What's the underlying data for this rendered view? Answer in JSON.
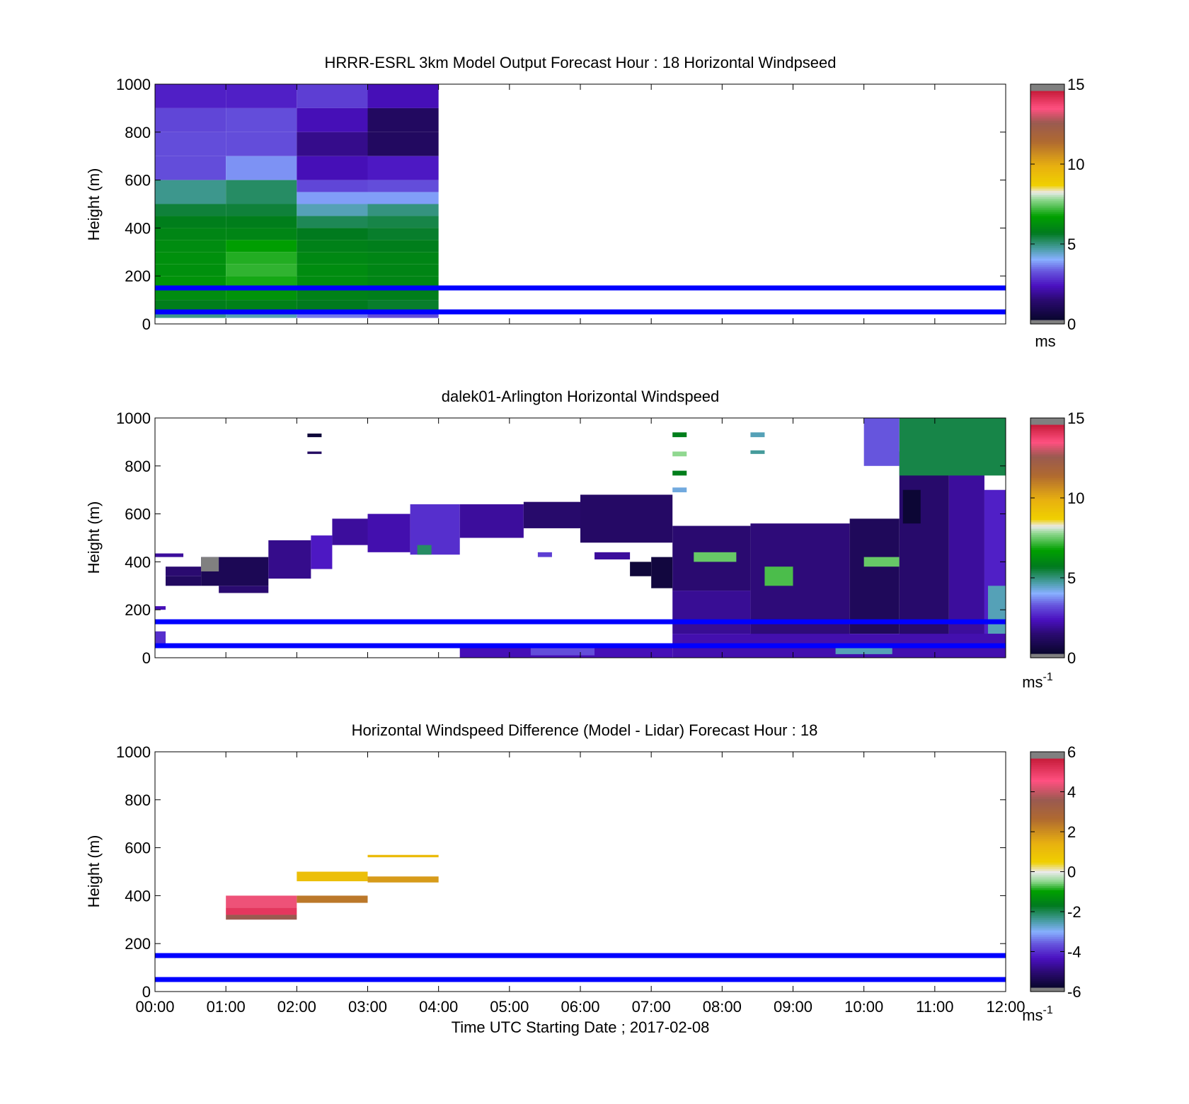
{
  "colors": {
    "ref_lines": "#0000ff",
    "speed_map": [
      [
        0.0,
        "#808080"
      ],
      [
        0.02,
        "#808080"
      ],
      [
        0.021,
        "#0a0630"
      ],
      [
        0.1,
        "#2a0a70"
      ],
      [
        0.16,
        "#4a10c0"
      ],
      [
        0.22,
        "#6655dd"
      ],
      [
        0.27,
        "#88b0ff"
      ],
      [
        0.31,
        "#50a0b0"
      ],
      [
        0.38,
        "#007a1e"
      ],
      [
        0.45,
        "#00a000"
      ],
      [
        0.52,
        "#90d890"
      ],
      [
        0.55,
        "#eaeaea"
      ],
      [
        0.58,
        "#f0d000"
      ],
      [
        0.66,
        "#e8b010"
      ],
      [
        0.76,
        "#b06a30"
      ],
      [
        0.84,
        "#9a5a50"
      ],
      [
        0.9,
        "#ff5080"
      ],
      [
        0.97,
        "#c81e3c"
      ],
      [
        0.971,
        "#808080"
      ],
      [
        1.0,
        "#808080"
      ]
    ],
    "diff_map": [
      [
        0.0,
        "#808080"
      ],
      [
        0.02,
        "#808080"
      ],
      [
        0.021,
        "#0a0630"
      ],
      [
        0.08,
        "#2a0a70"
      ],
      [
        0.14,
        "#4a10c0"
      ],
      [
        0.2,
        "#6655dd"
      ],
      [
        0.25,
        "#88b0ff"
      ],
      [
        0.29,
        "#50a0b0"
      ],
      [
        0.36,
        "#007a1e"
      ],
      [
        0.42,
        "#00a000"
      ],
      [
        0.46,
        "#90d890"
      ],
      [
        0.5,
        "#eaeaea"
      ],
      [
        0.54,
        "#f0d000"
      ],
      [
        0.62,
        "#e8b010"
      ],
      [
        0.72,
        "#b06a30"
      ],
      [
        0.8,
        "#9a5a50"
      ],
      [
        0.88,
        "#ff5080"
      ],
      [
        0.97,
        "#c81e3c"
      ],
      [
        0.971,
        "#808080"
      ],
      [
        1.0,
        "#808080"
      ]
    ]
  },
  "chart_data": [
    {
      "type": "heatmap",
      "title": "HRRR-ESRL 3km Model Output   Forecast Hour : 18 Horizontal Windpseed",
      "xlabel": "",
      "ylabel": "Height (m)",
      "xlim": [
        0,
        12
      ],
      "ylim": [
        0,
        1000
      ],
      "yticks": [
        0,
        200,
        400,
        600,
        800,
        1000
      ],
      "colorbar": {
        "range": [
          0,
          15
        ],
        "ticks": [
          0,
          5,
          10,
          15
        ],
        "label": "ms",
        "label_sup": ""
      },
      "reference_lines_m": [
        150,
        50
      ],
      "cells": [
        {
          "t0": 0,
          "t1": 1,
          "z0": 900,
          "z1": 1000,
          "v": 2.6
        },
        {
          "t0": 1,
          "t1": 2,
          "z0": 900,
          "z1": 1000,
          "v": 2.6
        },
        {
          "t0": 2,
          "t1": 3,
          "z0": 900,
          "z1": 1000,
          "v": 3.0
        },
        {
          "t0": 3,
          "t1": 4,
          "z0": 900,
          "z1": 1000,
          "v": 2.3
        },
        {
          "t0": 0,
          "t1": 1,
          "z0": 800,
          "z1": 900,
          "v": 3.1
        },
        {
          "t0": 1,
          "t1": 2,
          "z0": 800,
          "z1": 900,
          "v": 3.2
        },
        {
          "t0": 2,
          "t1": 3,
          "z0": 800,
          "z1": 900,
          "v": 2.3
        },
        {
          "t0": 3,
          "t1": 4,
          "z0": 800,
          "z1": 900,
          "v": 1.2
        },
        {
          "t0": 0,
          "t1": 1,
          "z0": 700,
          "z1": 800,
          "v": 3.2
        },
        {
          "t0": 1,
          "t1": 2,
          "z0": 700,
          "z1": 800,
          "v": 3.2
        },
        {
          "t0": 2,
          "t1": 3,
          "z0": 700,
          "z1": 800,
          "v": 1.8
        },
        {
          "t0": 3,
          "t1": 4,
          "z0": 700,
          "z1": 800,
          "v": 1.2
        },
        {
          "t0": 0,
          "t1": 1,
          "z0": 600,
          "z1": 700,
          "v": 3.2
        },
        {
          "t0": 1,
          "t1": 2,
          "z0": 600,
          "z1": 700,
          "v": 3.8
        },
        {
          "t0": 2,
          "t1": 3,
          "z0": 600,
          "z1": 700,
          "v": 2.3
        },
        {
          "t0": 3,
          "t1": 4,
          "z0": 600,
          "z1": 700,
          "v": 2.5
        },
        {
          "t0": 0,
          "t1": 1,
          "z0": 500,
          "z1": 600,
          "v": 4.9
        },
        {
          "t0": 1,
          "t1": 2,
          "z0": 500,
          "z1": 600,
          "v": 5.2
        },
        {
          "t0": 2,
          "t1": 3,
          "z0": 550,
          "z1": 600,
          "v": 3.1
        },
        {
          "t0": 3,
          "t1": 4,
          "z0": 550,
          "z1": 600,
          "v": 3.2
        },
        {
          "t0": 2,
          "t1": 3,
          "z0": 500,
          "z1": 550,
          "v": 3.9
        },
        {
          "t0": 3,
          "t1": 4,
          "z0": 500,
          "z1": 550,
          "v": 3.9
        },
        {
          "t0": 0,
          "t1": 1,
          "z0": 450,
          "z1": 500,
          "v": 5.5
        },
        {
          "t0": 1,
          "t1": 2,
          "z0": 450,
          "z1": 500,
          "v": 5.5
        },
        {
          "t0": 2,
          "t1": 3,
          "z0": 450,
          "z1": 500,
          "v": 4.6
        },
        {
          "t0": 3,
          "t1": 4,
          "z0": 450,
          "z1": 500,
          "v": 5.0
        },
        {
          "t0": 0,
          "t1": 1,
          "z0": 400,
          "z1": 450,
          "v": 5.8
        },
        {
          "t0": 1,
          "t1": 2,
          "z0": 400,
          "z1": 450,
          "v": 5.8
        },
        {
          "t0": 2,
          "t1": 3,
          "z0": 400,
          "z1": 450,
          "v": 5.3
        },
        {
          "t0": 3,
          "t1": 4,
          "z0": 400,
          "z1": 450,
          "v": 5.4
        },
        {
          "t0": 0,
          "t1": 1,
          "z0": 350,
          "z1": 400,
          "v": 6.0
        },
        {
          "t0": 1,
          "t1": 2,
          "z0": 350,
          "z1": 400,
          "v": 6.0
        },
        {
          "t0": 2,
          "t1": 3,
          "z0": 350,
          "z1": 400,
          "v": 5.7
        },
        {
          "t0": 3,
          "t1": 4,
          "z0": 350,
          "z1": 400,
          "v": 5.6
        },
        {
          "t0": 0,
          "t1": 1,
          "z0": 300,
          "z1": 350,
          "v": 6.2
        },
        {
          "t0": 1,
          "t1": 2,
          "z0": 300,
          "z1": 350,
          "v": 6.7
        },
        {
          "t0": 2,
          "t1": 3,
          "z0": 300,
          "z1": 350,
          "v": 5.9
        },
        {
          "t0": 3,
          "t1": 4,
          "z0": 300,
          "z1": 350,
          "v": 5.8
        },
        {
          "t0": 0,
          "t1": 1,
          "z0": 250,
          "z1": 300,
          "v": 6.3
        },
        {
          "t0": 1,
          "t1": 2,
          "z0": 250,
          "z1": 300,
          "v": 7.0
        },
        {
          "t0": 2,
          "t1": 3,
          "z0": 250,
          "z1": 300,
          "v": 6.1
        },
        {
          "t0": 3,
          "t1": 4,
          "z0": 250,
          "z1": 300,
          "v": 6.0
        },
        {
          "t0": 0,
          "t1": 1,
          "z0": 200,
          "z1": 250,
          "v": 6.3
        },
        {
          "t0": 1,
          "t1": 2,
          "z0": 200,
          "z1": 250,
          "v": 7.1
        },
        {
          "t0": 2,
          "t1": 3,
          "z0": 200,
          "z1": 250,
          "v": 6.2
        },
        {
          "t0": 3,
          "t1": 4,
          "z0": 200,
          "z1": 250,
          "v": 6.0
        },
        {
          "t0": 0,
          "t1": 1,
          "z0": 150,
          "z1": 200,
          "v": 6.4
        },
        {
          "t0": 1,
          "t1": 2,
          "z0": 150,
          "z1": 200,
          "v": 6.9
        },
        {
          "t0": 2,
          "t1": 3,
          "z0": 150,
          "z1": 200,
          "v": 6.2
        },
        {
          "t0": 3,
          "t1": 4,
          "z0": 150,
          "z1": 200,
          "v": 6.0
        },
        {
          "t0": 0,
          "t1": 1,
          "z0": 100,
          "z1": 150,
          "v": 6.2
        },
        {
          "t0": 1,
          "t1": 2,
          "z0": 100,
          "z1": 150,
          "v": 6.4
        },
        {
          "t0": 2,
          "t1": 3,
          "z0": 100,
          "z1": 150,
          "v": 5.9
        },
        {
          "t0": 3,
          "t1": 4,
          "z0": 100,
          "z1": 150,
          "v": 5.8
        },
        {
          "t0": 0,
          "t1": 1,
          "z0": 60,
          "z1": 100,
          "v": 5.8
        },
        {
          "t0": 1,
          "t1": 2,
          "z0": 60,
          "z1": 100,
          "v": 5.9
        },
        {
          "t0": 2,
          "t1": 3,
          "z0": 60,
          "z1": 100,
          "v": 5.7
        },
        {
          "t0": 3,
          "t1": 4,
          "z0": 60,
          "z1": 100,
          "v": 5.6
        },
        {
          "t0": 0,
          "t1": 1,
          "z0": 25,
          "z1": 60,
          "v": 4.9
        },
        {
          "t0": 1,
          "t1": 2,
          "z0": 25,
          "z1": 60,
          "v": 4.6
        },
        {
          "t0": 2,
          "t1": 3,
          "z0": 25,
          "z1": 60,
          "v": 3.6
        },
        {
          "t0": 3,
          "t1": 4,
          "z0": 25,
          "z1": 60,
          "v": 3.2
        }
      ]
    },
    {
      "type": "heatmap",
      "title": "dalek01-Arlington  Horizontal Windspeed",
      "xlabel": "",
      "ylabel": "Height (m)",
      "xlim": [
        0,
        12
      ],
      "ylim": [
        0,
        1000
      ],
      "yticks": [
        0,
        200,
        400,
        600,
        800,
        1000
      ],
      "colorbar": {
        "range": [
          0,
          15
        ],
        "ticks": [
          0,
          5,
          10,
          15
        ],
        "label": "ms",
        "label_sup": "-1"
      },
      "reference_lines_m": [
        150,
        50
      ],
      "cells": [
        {
          "t0": 0,
          "t1": 0.4,
          "z0": 420,
          "z1": 435,
          "v": 2.0
        },
        {
          "t0": 0.15,
          "t1": 0.65,
          "z0": 340,
          "z1": 380,
          "v": 1.5
        },
        {
          "t0": 0.15,
          "t1": 0.65,
          "z0": 300,
          "z1": 340,
          "v": 1.2
        },
        {
          "t0": 0.65,
          "t1": 1.6,
          "z0": 300,
          "z1": 420,
          "v": 1.0
        },
        {
          "t0": 0.65,
          "t1": 0.9,
          "z0": 360,
          "z1": 420,
          "v": 0.2
        },
        {
          "t0": 0.9,
          "t1": 1.6,
          "z0": 270,
          "z1": 300,
          "v": 1.5
        },
        {
          "t0": 1.6,
          "t1": 2.2,
          "z0": 330,
          "z1": 490,
          "v": 1.8
        },
        {
          "t0": 2.2,
          "t1": 2.5,
          "z0": 370,
          "z1": 510,
          "v": 2.5
        },
        {
          "t0": 2.5,
          "t1": 3.0,
          "z0": 470,
          "z1": 580,
          "v": 2.0
        },
        {
          "t0": 3.0,
          "t1": 3.6,
          "z0": 440,
          "z1": 600,
          "v": 2.2
        },
        {
          "t0": 3.6,
          "t1": 4.3,
          "z0": 430,
          "z1": 640,
          "v": 2.8
        },
        {
          "t0": 3.7,
          "t1": 3.9,
          "z0": 430,
          "z1": 470,
          "v": 5.2
        },
        {
          "t0": 4.3,
          "t1": 5.2,
          "z0": 500,
          "z1": 640,
          "v": 2.0
        },
        {
          "t0": 5.2,
          "t1": 6.0,
          "z0": 540,
          "z1": 650,
          "v": 1.4
        },
        {
          "t0": 6.0,
          "t1": 7.3,
          "z0": 480,
          "z1": 680,
          "v": 1.3
        },
        {
          "t0": 5.4,
          "t1": 5.6,
          "z0": 420,
          "z1": 440,
          "v": 3.0
        },
        {
          "t0": 6.2,
          "t1": 6.7,
          "z0": 410,
          "z1": 440,
          "v": 2.0
        },
        {
          "t0": 2.15,
          "t1": 2.35,
          "z0": 920,
          "z1": 935,
          "v": 0.5
        },
        {
          "t0": 2.15,
          "t1": 2.35,
          "z0": 850,
          "z1": 860,
          "v": 1.2
        },
        {
          "t0": 0,
          "t1": 0.15,
          "z0": 200,
          "z1": 215,
          "v": 2.3
        },
        {
          "t0": 0,
          "t1": 0.15,
          "z0": 40,
          "z1": 110,
          "v": 2.8
        },
        {
          "t0": 4.3,
          "t1": 7.3,
          "z0": 0,
          "z1": 60,
          "v": 2.3
        },
        {
          "t0": 5.3,
          "t1": 6.2,
          "z0": 10,
          "z1": 40,
          "v": 3.2
        },
        {
          "t0": 6.7,
          "t1": 7.0,
          "z0": 340,
          "z1": 400,
          "v": 0.5
        },
        {
          "t0": 7.0,
          "t1": 7.3,
          "z0": 290,
          "z1": 420,
          "v": 0.6
        },
        {
          "t0": 7.3,
          "t1": 7.5,
          "z0": 920,
          "z1": 940,
          "v": 5.8
        },
        {
          "t0": 7.3,
          "t1": 7.5,
          "z0": 840,
          "z1": 860,
          "v": 7.8
        },
        {
          "t0": 7.3,
          "t1": 7.5,
          "z0": 760,
          "z1": 780,
          "v": 5.8
        },
        {
          "t0": 7.3,
          "t1": 7.5,
          "z0": 690,
          "z1": 710,
          "v": 4.3
        },
        {
          "t0": 8.4,
          "t1": 8.6,
          "z0": 920,
          "z1": 940,
          "v": 4.6
        },
        {
          "t0": 8.4,
          "t1": 8.6,
          "z0": 850,
          "z1": 865,
          "v": 4.8
        },
        {
          "t0": 7.3,
          "t1": 8.4,
          "z0": 280,
          "z1": 550,
          "v": 1.5
        },
        {
          "t0": 7.3,
          "t1": 8.4,
          "z0": 100,
          "z1": 280,
          "v": 1.9
        },
        {
          "t0": 7.6,
          "t1": 8.2,
          "z0": 400,
          "z1": 440,
          "v": 7.5
        },
        {
          "t0": 8.4,
          "t1": 9.8,
          "z0": 90,
          "z1": 560,
          "v": 1.6
        },
        {
          "t0": 8.6,
          "t1": 9.0,
          "z0": 300,
          "z1": 380,
          "v": 7.3
        },
        {
          "t0": 9.8,
          "t1": 10.5,
          "z0": 100,
          "z1": 580,
          "v": 1.1
        },
        {
          "t0": 10.0,
          "t1": 10.5,
          "z0": 380,
          "z1": 420,
          "v": 7.5
        },
        {
          "t0": 10.5,
          "t1": 11.2,
          "z0": 90,
          "z1": 860,
          "v": 1.4
        },
        {
          "t0": 10.55,
          "t1": 10.8,
          "z0": 560,
          "z1": 700,
          "v": 0.4
        },
        {
          "t0": 11.2,
          "t1": 11.7,
          "z0": 90,
          "z1": 950,
          "v": 2.0
        },
        {
          "t0": 11.7,
          "t1": 12.05,
          "z0": 90,
          "z1": 700,
          "v": 2.6
        },
        {
          "t0": 11.75,
          "t1": 12.05,
          "z0": 100,
          "z1": 300,
          "v": 4.6
        },
        {
          "t0": 10.0,
          "t1": 10.5,
          "z0": 800,
          "z1": 1000,
          "v": 3.3
        },
        {
          "t0": 10.5,
          "t1": 12.05,
          "z0": 760,
          "z1": 1000,
          "v": 5.4
        },
        {
          "t0": 7.3,
          "t1": 12.05,
          "z0": 0,
          "z1": 100,
          "v": 2.2
        },
        {
          "t0": 9.6,
          "t1": 10.4,
          "z0": 15,
          "z1": 40,
          "v": 4.6
        }
      ]
    },
    {
      "type": "heatmap",
      "title": "Horizontal Windspeed Difference (Model - Lidar) Forecast Hour : 18",
      "xlabel": "Time UTC  Starting Date ; 2017-02-08",
      "ylabel": "Height (m)",
      "xlim": [
        0,
        12
      ],
      "ylim": [
        0,
        1000
      ],
      "yticks": [
        0,
        200,
        400,
        600,
        800,
        1000
      ],
      "xticks": [
        "00:00",
        "01:00",
        "02:00",
        "03:00",
        "04:00",
        "05:00",
        "06:00",
        "07:00",
        "08:00",
        "09:00",
        "10:00",
        "11:00",
        "12:00"
      ],
      "colorbar": {
        "range": [
          -6,
          6
        ],
        "ticks": [
          -6,
          -4,
          -2,
          0,
          2,
          4,
          6
        ],
        "label": "ms",
        "label_sup": "-1"
      },
      "reference_lines_m": [
        150,
        50
      ],
      "cells": [
        {
          "t0": 1,
          "t1": 2,
          "z0": 350,
          "z1": 400,
          "v": 4.4
        },
        {
          "t0": 1,
          "t1": 2,
          "z0": 320,
          "z1": 350,
          "v": 5.1
        },
        {
          "t0": 1,
          "t1": 2,
          "z0": 300,
          "z1": 320,
          "v": 3.6
        },
        {
          "t0": 2,
          "t1": 3,
          "z0": 460,
          "z1": 500,
          "v": 1.0
        },
        {
          "t0": 2,
          "t1": 3,
          "z0": 370,
          "z1": 400,
          "v": 2.4
        },
        {
          "t0": 3,
          "t1": 4,
          "z0": 455,
          "z1": 480,
          "v": 1.8
        },
        {
          "t0": 3,
          "t1": 4,
          "z0": 560,
          "z1": 570,
          "v": 1.1
        }
      ]
    }
  ]
}
